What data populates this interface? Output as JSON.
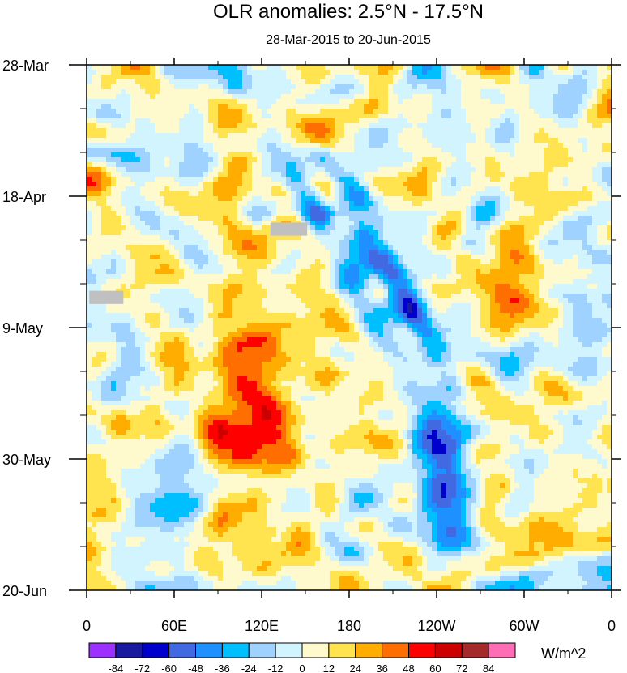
{
  "chart_data": {
    "type": "heatmap",
    "title": "OLR anomalies: 2.5°N - 17.5°N",
    "subtitle": "28-Mar-2015 to 20-Jun-2015",
    "x_ticks": [
      "0",
      "60E",
      "120E",
      "180",
      "120W",
      "60W",
      "0"
    ],
    "y_ticks": [
      "28-Mar",
      "18-Apr",
      "9-May",
      "30-May",
      "20-Jun"
    ],
    "colorbar": {
      "levels": [
        "-84",
        "-72",
        "-60",
        "-48",
        "-36",
        "-24",
        "-12",
        "0",
        "12",
        "24",
        "36",
        "48",
        "60",
        "72",
        "84"
      ],
      "colors": [
        "#9b30ff",
        "#1a1aa0",
        "#0000cd",
        "#4169e1",
        "#1e90ff",
        "#00bfff",
        "#a0d2ff",
        "#d1f4ff",
        "#fffacd",
        "#ffe34f",
        "#ffad00",
        "#ff6e00",
        "#ff0000",
        "#cd0000",
        "#a52a2a",
        "#ff6eb4"
      ],
      "units": "W/m^2"
    },
    "missing_color": "#c0c0c0"
  }
}
